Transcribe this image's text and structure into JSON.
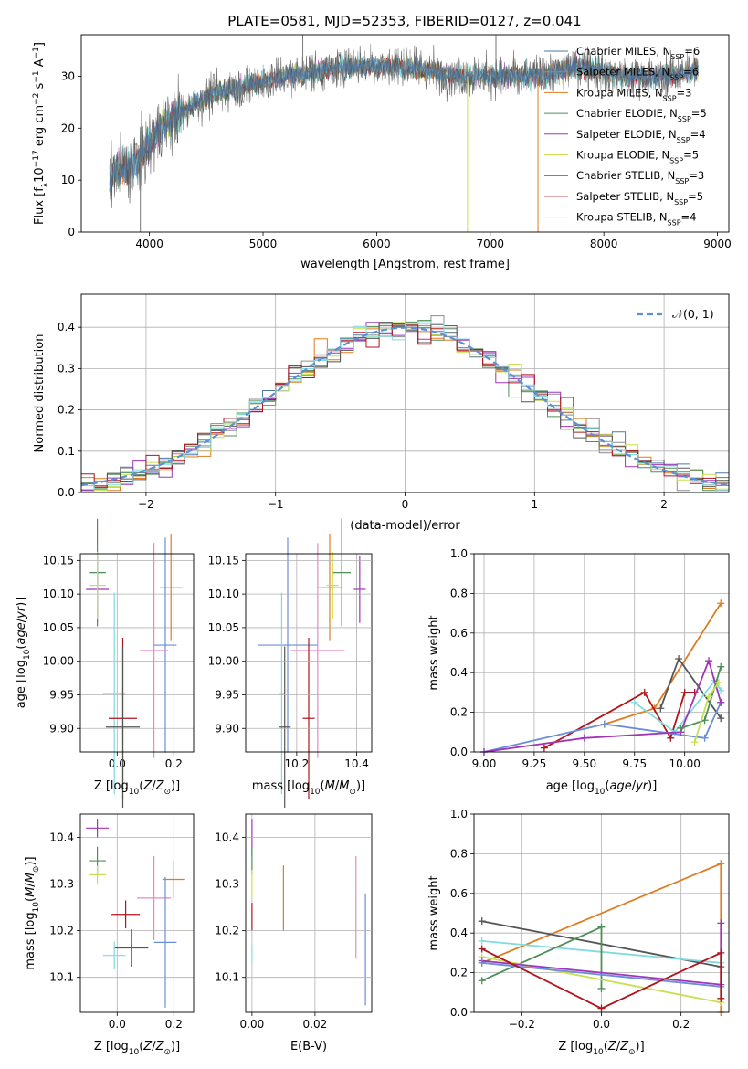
{
  "title": "PLATE=0581, MJD=52353, FIBERID=0127, z=0.041",
  "colors": {
    "chabrier_miles": "#4e79a7",
    "salpeter_miles": "#8c8c8c",
    "kroupa_miles": "#e07b21",
    "chabrier_elodie": "#4f8f5a",
    "salpeter_elodie": "#a035b8",
    "kroupa_elodie": "#c8e04f",
    "chabrier_stelib": "#555555",
    "salpeter_stelib": "#b0151c",
    "kroupa_stelib": "#7fdbe0",
    "blue": "#6a8ed8",
    "pink": "#e58ac4",
    "normal_curve": "#5b8fd6"
  },
  "chart_data": [
    {
      "id": "spectrum",
      "type": "line",
      "xlabel": "wavelength [Angstrom, rest frame]",
      "ylabel": "Flux [f_λ10^-17 erg cm^-2 s^-1 A^-1]",
      "xlim": [
        3400,
        9100
      ],
      "ylim": [
        0,
        38
      ],
      "xticks": [
        "4000",
        "5000",
        "6000",
        "7000",
        "8000",
        "9000"
      ],
      "yticks": [
        "0",
        "10",
        "20",
        "30"
      ],
      "legend": [
        "Chabrier MILES, N_SSP=6",
        "Salpeter MILES, N_SSP=6",
        "Kroupa MILES, N_SSP=3",
        "Chabrier ELODIE, N_SSP=5",
        "Salpeter ELODIE, N_SSP=4",
        "Kroupa ELODIE, N_SSP=5",
        "Chabrier STELIB, N_SSP=3",
        "Salpeter STELIB, N_SSP=5",
        "Kroupa STELIB, N_SSP=4"
      ],
      "legend_placement": "upper right",
      "envelope": [
        [
          3650,
          10
        ],
        [
          3700,
          12
        ],
        [
          3800,
          12
        ],
        [
          3900,
          14
        ],
        [
          4000,
          17
        ],
        [
          4100,
          20
        ],
        [
          4200,
          22
        ],
        [
          4300,
          23
        ],
        [
          4400,
          25
        ],
        [
          4500,
          26
        ],
        [
          4600,
          27
        ],
        [
          4800,
          28
        ],
        [
          5000,
          29
        ],
        [
          5200,
          30
        ],
        [
          5500,
          31
        ],
        [
          5800,
          32
        ],
        [
          6000,
          32
        ],
        [
          6200,
          32
        ],
        [
          6500,
          31
        ],
        [
          6700,
          30
        ],
        [
          6900,
          30
        ],
        [
          7100,
          30
        ],
        [
          7400,
          30
        ],
        [
          7600,
          31
        ],
        [
          7800,
          32
        ],
        [
          8000,
          31
        ],
        [
          8200,
          30
        ],
        [
          8500,
          30
        ],
        [
          8800,
          31
        ]
      ],
      "spikes": [
        [
          5350,
          38
        ],
        [
          6800,
          0
        ],
        [
          7050,
          38
        ],
        [
          7420,
          0
        ],
        [
          3920,
          0
        ]
      ]
    },
    {
      "id": "residuals",
      "type": "line",
      "xlabel": "(data-model)/error",
      "ylabel": "Normed distribution",
      "xlim": [
        -2.5,
        2.5
      ],
      "ylim": [
        0,
        0.48
      ],
      "xticks": [
        "−2",
        "−1",
        "0",
        "1",
        "2"
      ],
      "yticks": [
        "0.0",
        "0.1",
        "0.2",
        "0.3",
        "0.4"
      ],
      "legend": [
        "𝒩(0, 1)"
      ],
      "legend_placement": "upper right",
      "grid": true
    },
    {
      "id": "age_vs_Z",
      "type": "scatter",
      "xlabel": "Z [log10(Z/Z⊙)]",
      "ylabel": "age  [log10(age/yr)]",
      "xlim": [
        -0.13,
        0.27
      ],
      "ylim": [
        9.865,
        10.16
      ],
      "xticks": [
        "0.0",
        "0.2"
      ],
      "yticks": [
        "9.90",
        "9.95",
        "10.00",
        "10.05",
        "10.10",
        "10.15"
      ],
      "grid": true,
      "points": [
        {
          "model": "kroupa_miles",
          "x": 0.19,
          "y": 10.11,
          "xerr": 0.04,
          "yerr": 0.08
        },
        {
          "model": "salpeter_elodie",
          "x": -0.07,
          "y": 10.107,
          "xerr": 0.04,
          "yerr": 0.05
        },
        {
          "model": "chabrier_elodie",
          "x": -0.07,
          "y": 10.132,
          "xerr": 0.03,
          "yerr": 0.08
        },
        {
          "model": "kroupa_elodie",
          "x": -0.07,
          "y": 10.113,
          "xerr": 0.03,
          "yerr": 0.05
        },
        {
          "model": "blue",
          "x": 0.17,
          "y": 10.024,
          "xerr": 0.04,
          "yerr": 0.16
        },
        {
          "model": "pink",
          "x": 0.13,
          "y": 10.016,
          "xerr": 0.05,
          "yerr": 0.16
        },
        {
          "model": "kroupa_stelib",
          "x": -0.01,
          "y": 9.952,
          "xerr": 0.04,
          "yerr": 0.15
        },
        {
          "model": "salpeter_stelib",
          "x": 0.02,
          "y": 9.915,
          "xerr": 0.05,
          "yerr": 0.12
        },
        {
          "model": "chabrier_stelib",
          "x": 0.02,
          "y": 9.902,
          "xerr": 0.06,
          "yerr": 0.12
        }
      ]
    },
    {
      "id": "age_vs_mass",
      "type": "scatter",
      "xlabel": "mass [log10(M/M⊙)]",
      "xlim": [
        10.03,
        10.45
      ],
      "ylim": [
        9.865,
        10.16
      ],
      "xticks": [
        "10.2",
        "10.4"
      ],
      "grid": true,
      "points": [
        {
          "model": "kroupa_miles",
          "x": 10.31,
          "y": 10.11,
          "xerr": 0.04,
          "yerr": 0.08
        },
        {
          "model": "salpeter_elodie",
          "x": 10.41,
          "y": 10.107,
          "xerr": 0.02,
          "yerr": 0.05
        },
        {
          "model": "chabrier_elodie",
          "x": 10.35,
          "y": 10.132,
          "xerr": 0.03,
          "yerr": 0.08
        },
        {
          "model": "kroupa_elodie",
          "x": 10.32,
          "y": 10.113,
          "xerr": 0.02,
          "yerr": 0.05
        },
        {
          "model": "blue",
          "x": 10.17,
          "y": 10.024,
          "xerr": 0.1,
          "yerr": 0.16
        },
        {
          "model": "pink",
          "x": 10.27,
          "y": 10.016,
          "xerr": 0.09,
          "yerr": 0.16
        },
        {
          "model": "kroupa_stelib",
          "x": 10.15,
          "y": 9.952,
          "xerr": 0.01,
          "yerr": 0.15
        },
        {
          "model": "salpeter_stelib",
          "x": 10.24,
          "y": 9.915,
          "xerr": 0.02,
          "yerr": 0.12
        },
        {
          "model": "chabrier_stelib",
          "x": 10.16,
          "y": 9.902,
          "xerr": 0.02,
          "yerr": 0.12
        }
      ]
    },
    {
      "id": "massweight_vs_age",
      "type": "line",
      "xlabel": "age  [log10(age/yr)]",
      "ylabel": "mass weight",
      "xlim": [
        8.95,
        10.22
      ],
      "ylim": [
        0,
        1
      ],
      "xticks": [
        "9.00",
        "9.25",
        "9.50",
        "9.75",
        "10.00"
      ],
      "yticks": [
        "0.0",
        "0.2",
        "0.4",
        "0.6",
        "0.8",
        "1.0"
      ],
      "grid": true,
      "series": [
        {
          "model": "kroupa_miles",
          "x": [
            9.6,
            9.85,
            10.18
          ],
          "y": [
            0.14,
            0.22,
            0.75
          ]
        },
        {
          "model": "salpeter_stelib",
          "x": [
            9.3,
            9.8,
            9.93,
            10.0,
            10.05
          ],
          "y": [
            0.02,
            0.3,
            0.07,
            0.3,
            0.3
          ]
        },
        {
          "model": "chabrier_stelib",
          "x": [
            9.88,
            9.97,
            10.18
          ],
          "y": [
            0.22,
            0.47,
            0.17
          ]
        },
        {
          "model": "kroupa_stelib",
          "x": [
            9.75,
            9.95,
            10.15,
            10.18
          ],
          "y": [
            0.25,
            0.1,
            0.36,
            0.31
          ]
        },
        {
          "model": "blue",
          "x": [
            9.0,
            9.6,
            10.1,
            10.18
          ],
          "y": [
            0.0,
            0.14,
            0.07,
            0.25
          ]
        },
        {
          "model": "salpeter_elodie",
          "x": [
            9.0,
            9.5,
            9.98,
            10.12,
            10.18
          ],
          "y": [
            0.0,
            0.07,
            0.1,
            0.46,
            0.25
          ]
        },
        {
          "model": "chabrier_elodie",
          "x": [
            9.98,
            10.1,
            10.18
          ],
          "y": [
            0.12,
            0.16,
            0.43
          ]
        },
        {
          "model": "kroupa_elodie",
          "x": [
            10.05,
            10.12,
            10.17
          ],
          "y": [
            0.05,
            0.28,
            0.35
          ]
        }
      ]
    },
    {
      "id": "mass_vs_Z",
      "type": "scatter",
      "xlabel": "Z [log10(Z/Z⊙)]",
      "ylabel": "mass [log10(M/M⊙)]",
      "xlim": [
        -0.13,
        0.27
      ],
      "ylim": [
        10.025,
        10.45
      ],
      "xticks": [
        "0.0",
        "0.2"
      ],
      "yticks": [
        "10.1",
        "10.2",
        "10.3",
        "10.4"
      ],
      "grid": true,
      "points": [
        {
          "model": "salpeter_elodie",
          "x": -0.07,
          "y": 10.42,
          "xerr": 0.04,
          "yerr": 0.02
        },
        {
          "model": "chabrier_elodie",
          "x": -0.07,
          "y": 10.35,
          "xerr": 0.03,
          "yerr": 0.03
        },
        {
          "model": "kroupa_elodie",
          "x": -0.07,
          "y": 10.32,
          "xerr": 0.03,
          "yerr": 0.02
        },
        {
          "model": "kroupa_miles",
          "x": 0.2,
          "y": 10.31,
          "xerr": 0.04,
          "yerr": 0.04
        },
        {
          "model": "pink",
          "x": 0.13,
          "y": 10.27,
          "xerr": 0.06,
          "yerr": 0.09
        },
        {
          "model": "salpeter_stelib",
          "x": 0.03,
          "y": 10.235,
          "xerr": 0.05,
          "yerr": 0.03
        },
        {
          "model": "blue",
          "x": 0.17,
          "y": 10.175,
          "xerr": 0.04,
          "yerr": 0.14
        },
        {
          "model": "chabrier_stelib",
          "x": 0.05,
          "y": 10.163,
          "xerr": 0.06,
          "yerr": 0.04
        },
        {
          "model": "kroupa_stelib",
          "x": -0.01,
          "y": 10.147,
          "xerr": 0.04,
          "yerr": 0.03
        }
      ]
    },
    {
      "id": "mass_vs_ebv",
      "type": "scatter",
      "xlabel": "E(B-V)",
      "xlim": [
        -0.002,
        0.038
      ],
      "ylim": [
        10.025,
        10.45
      ],
      "xticks": [
        "0.00",
        "0.02"
      ],
      "grid": true,
      "points": [
        {
          "model": "salpeter_elodie",
          "x": 0.0,
          "y": 10.4,
          "yerr": 0.04
        },
        {
          "model": "chabrier_elodie",
          "x": 0.0,
          "y": 10.35,
          "yerr": 0.03
        },
        {
          "model": "kroupa_elodie",
          "x": 0.0,
          "y": 10.3,
          "yerr": 0.03
        },
        {
          "model": "salpeter_stelib",
          "x": 0.0,
          "y": 10.23,
          "yerr": 0.03
        },
        {
          "model": "kroupa_stelib",
          "x": 0.0,
          "y": 10.15,
          "yerr": 0.02
        },
        {
          "model": "kroupa_miles",
          "x": 0.01,
          "y": 10.27,
          "yerr": 0.07
        },
        {
          "model": "pink",
          "x": 0.033,
          "y": 10.25,
          "yerr": 0.11
        },
        {
          "model": "blue",
          "x": 0.036,
          "y": 10.16,
          "yerr": 0.12
        }
      ]
    },
    {
      "id": "massweight_vs_Z",
      "type": "line",
      "xlabel": "Z [log10(Z/Z⊙)]",
      "ylabel": "mass weight",
      "xlim": [
        -0.32,
        0.32
      ],
      "ylim": [
        0,
        1
      ],
      "xticks": [
        "−0.2",
        "0.0",
        "0.2"
      ],
      "yticks": [
        "0.0",
        "0.2",
        "0.4",
        "0.6",
        "0.8",
        "1.0"
      ],
      "grid": true,
      "series": [
        {
          "model": "kroupa_miles",
          "x": [
            -0.3,
            0.3,
            0.3
          ],
          "y": [
            0.25,
            0.75,
            0.0
          ]
        },
        {
          "model": "chabrier_stelib",
          "x": [
            -0.3,
            0.3
          ],
          "y": [
            0.46,
            0.23
          ]
        },
        {
          "model": "kroupa_stelib",
          "x": [
            -0.3,
            0.3
          ],
          "y": [
            0.36,
            0.25
          ]
        },
        {
          "model": "chabrier_elodie",
          "x": [
            -0.3,
            0.0,
            0.0
          ],
          "y": [
            0.16,
            0.43,
            0.12
          ]
        },
        {
          "model": "kroupa_elodie",
          "x": [
            -0.3,
            0.3
          ],
          "y": [
            0.28,
            0.05
          ]
        },
        {
          "model": "salpeter_elodie",
          "x": [
            -0.3,
            0.3,
            0.3
          ],
          "y": [
            0.26,
            0.14,
            0.45
          ]
        },
        {
          "model": "blue",
          "x": [
            -0.3,
            0.3
          ],
          "y": [
            0.25,
            0.13
          ]
        },
        {
          "model": "salpeter_stelib",
          "x": [
            -0.3,
            0.0,
            0.3,
            0.3
          ],
          "y": [
            0.32,
            0.02,
            0.3,
            0.07
          ]
        }
      ]
    }
  ]
}
